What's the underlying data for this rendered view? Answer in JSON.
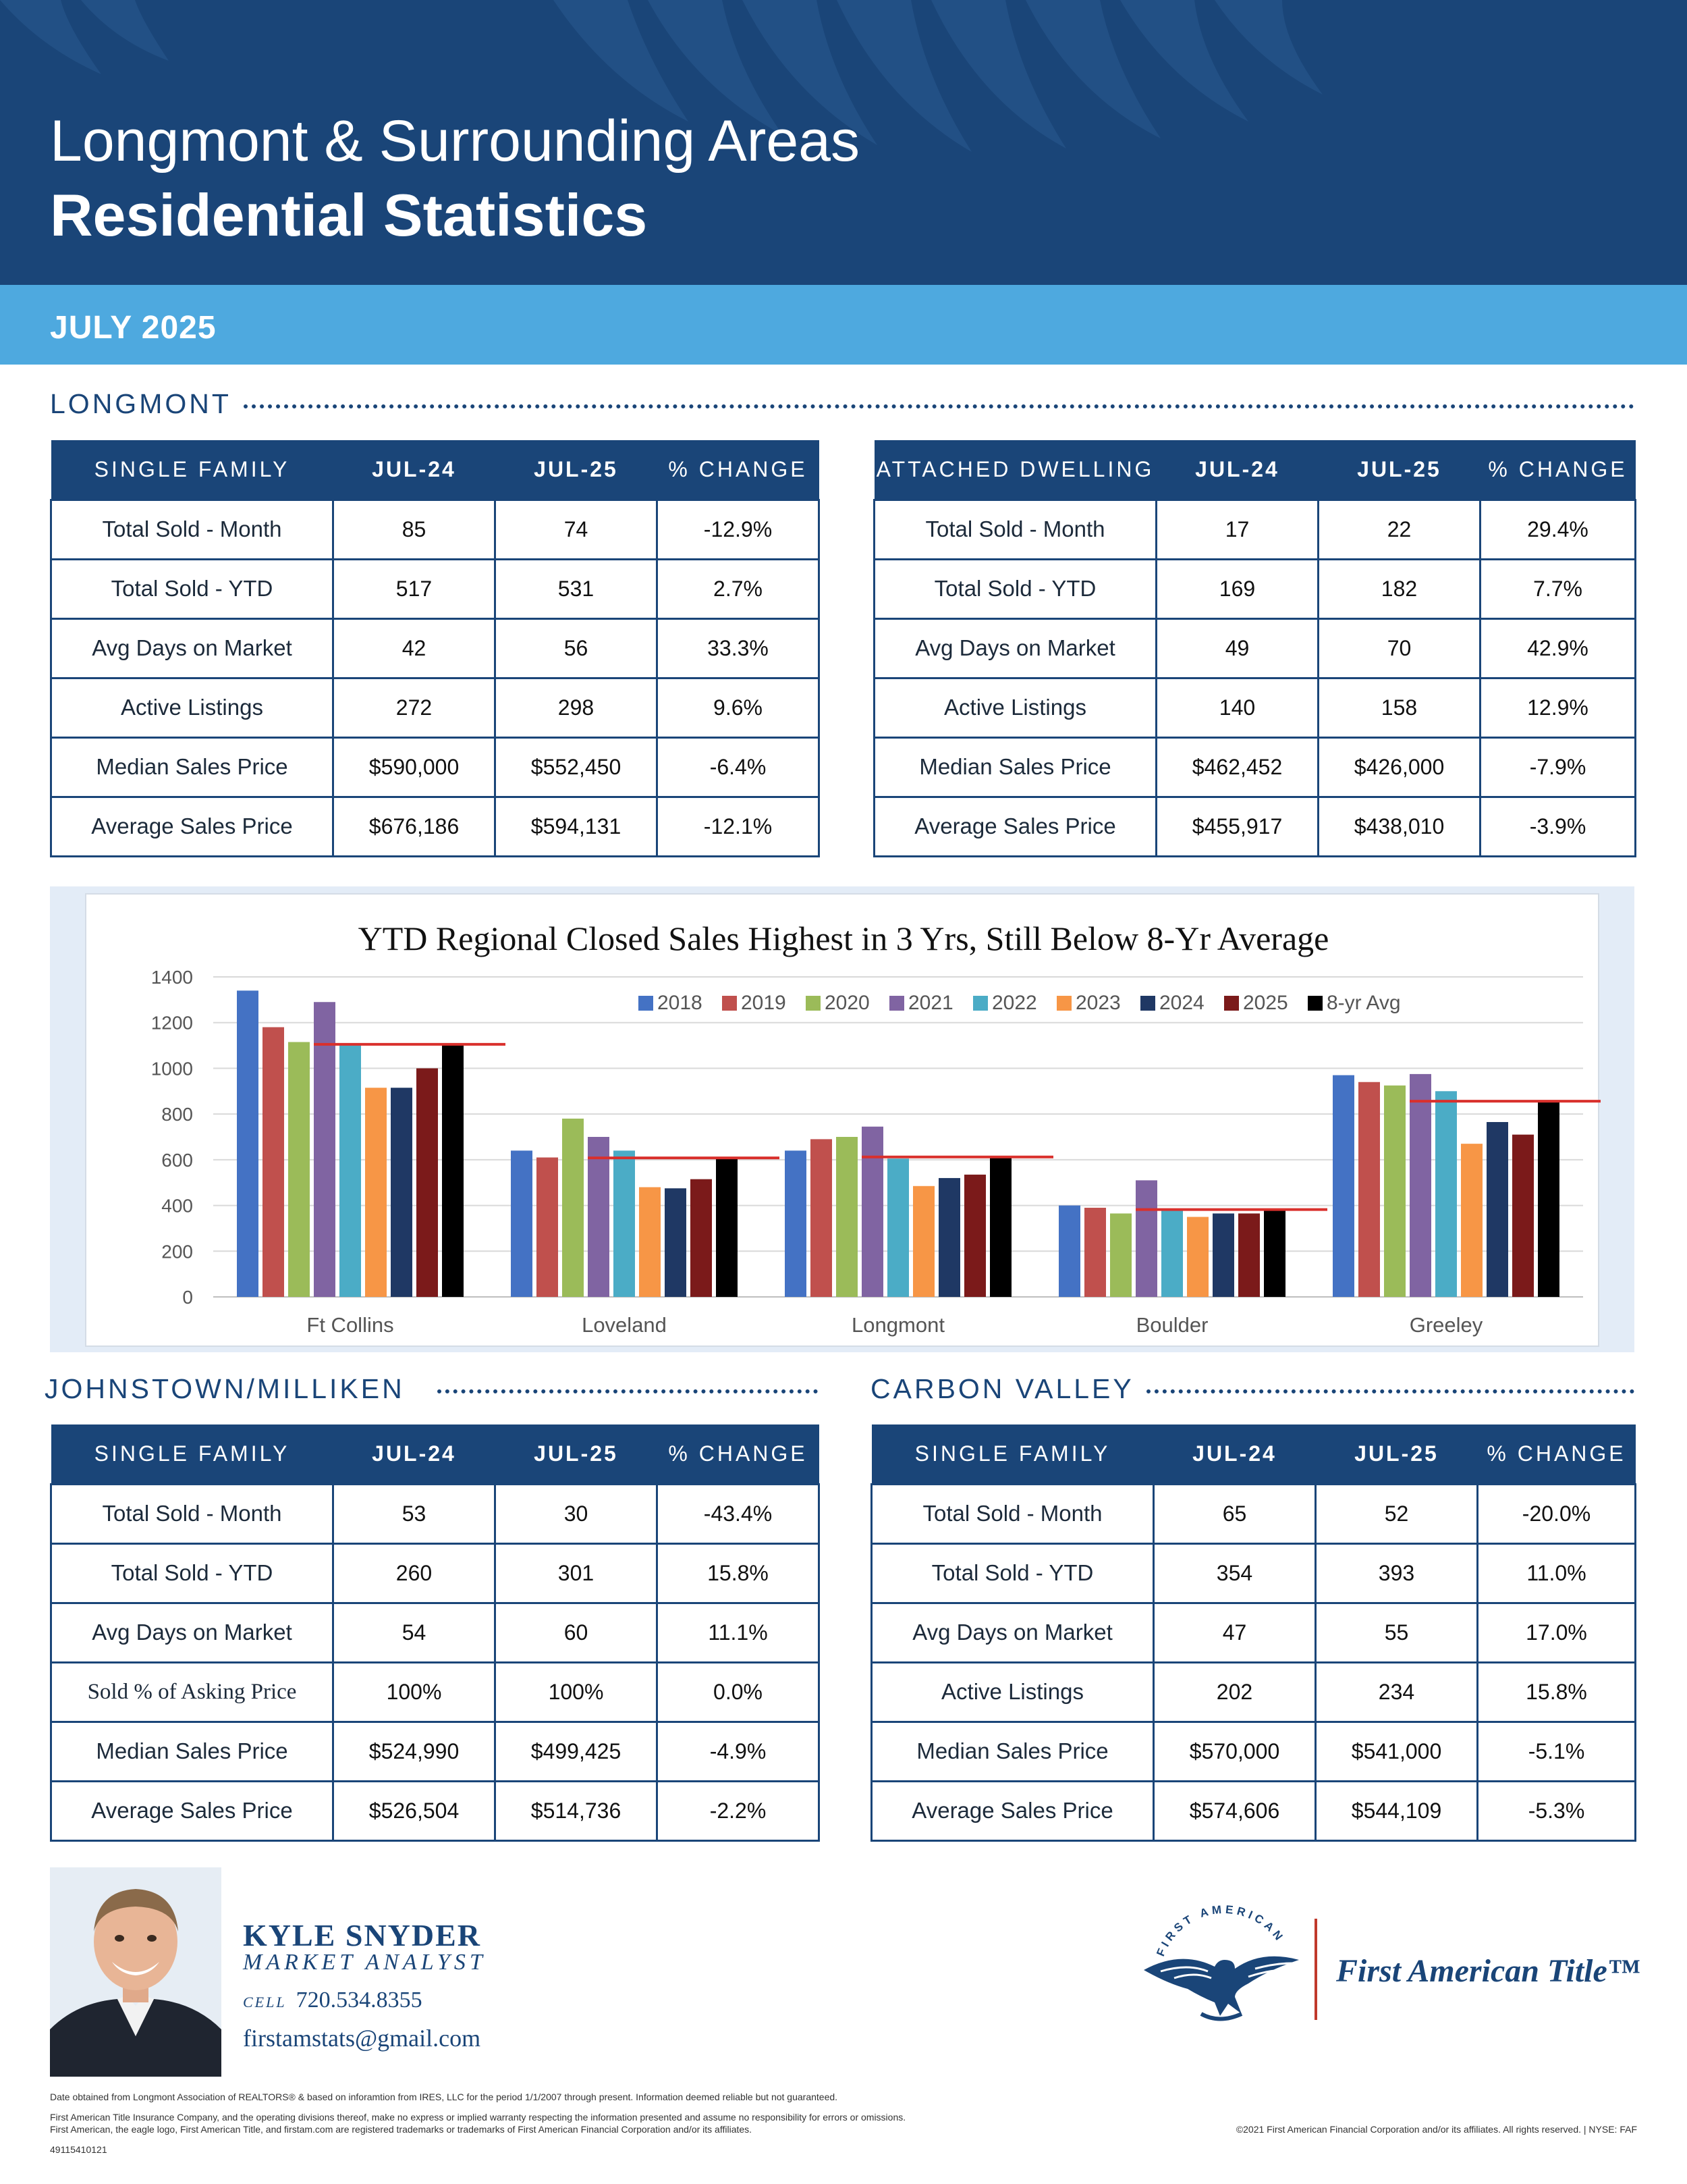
{
  "header": {
    "title_line1": "Longmont & Surrounding Areas",
    "title_line2": "Residential Statistics",
    "date": "JULY 2025"
  },
  "sections": {
    "longmont": "LONGMONT",
    "johnstown": "JOHNSTOWN/MILLIKEN",
    "carbon": "CARBON VALLEY"
  },
  "tables": {
    "longmont_sf": {
      "headers": [
        "SINGLE FAMILY",
        "JUL-24",
        "JUL-25",
        "% CHANGE"
      ],
      "rows": [
        [
          "Total Sold - Month",
          "85",
          "74",
          "-12.9%"
        ],
        [
          "Total Sold - YTD",
          "517",
          "531",
          "2.7%"
        ],
        [
          "Avg Days on Market",
          "42",
          "56",
          "33.3%"
        ],
        [
          "Active Listings",
          "272",
          "298",
          "9.6%"
        ],
        [
          "Median Sales Price",
          "$590,000",
          "$552,450",
          "-6.4%"
        ],
        [
          "Average Sales Price",
          "$676,186",
          "$594,131",
          "-12.1%"
        ]
      ]
    },
    "longmont_ad": {
      "headers": [
        "ATTACHED DWELLING",
        "JUL-24",
        "JUL-25",
        "% CHANGE"
      ],
      "rows": [
        [
          "Total Sold - Month",
          "17",
          "22",
          "29.4%"
        ],
        [
          "Total Sold - YTD",
          "169",
          "182",
          "7.7%"
        ],
        [
          "Avg Days on Market",
          "49",
          "70",
          "42.9%"
        ],
        [
          "Active Listings",
          "140",
          "158",
          "12.9%"
        ],
        [
          "Median Sales Price",
          "$462,452",
          "$426,000",
          "-7.9%"
        ],
        [
          "Average Sales Price",
          "$455,917",
          "$438,010",
          "-3.9%"
        ]
      ]
    },
    "johnstown_sf": {
      "headers": [
        "SINGLE FAMILY",
        "JUL-24",
        "JUL-25",
        "% CHANGE"
      ],
      "rows": [
        [
          "Total Sold - Month",
          "53",
          "30",
          "-43.4%"
        ],
        [
          "Total Sold - YTD",
          "260",
          "301",
          "15.8%"
        ],
        [
          "Avg Days on Market",
          "54",
          "60",
          "11.1%"
        ],
        [
          "Sold % of Asking Price",
          "100%",
          "100%",
          "0.0%"
        ],
        [
          "Median Sales Price",
          "$524,990",
          "$499,425",
          "-4.9%"
        ],
        [
          "Average Sales Price",
          "$526,504",
          "$514,736",
          "-2.2%"
        ]
      ]
    },
    "carbon_sf": {
      "headers": [
        "SINGLE FAMILY",
        "JUL-24",
        "JUL-25",
        "% CHANGE"
      ],
      "rows": [
        [
          "Total Sold - Month",
          "65",
          "52",
          "-20.0%"
        ],
        [
          "Total Sold - YTD",
          "354",
          "393",
          "11.0%"
        ],
        [
          "Avg Days on Market",
          "47",
          "55",
          "17.0%"
        ],
        [
          "Active Listings",
          "202",
          "234",
          "15.8%"
        ],
        [
          "Median Sales Price",
          "$570,000",
          "$541,000",
          "-5.1%"
        ],
        [
          "Average Sales Price",
          "$574,606",
          "$544,109",
          "-5.3%"
        ]
      ]
    }
  },
  "chart_data": {
    "type": "bar",
    "title": "YTD Regional Closed Sales Highest in 3 Yrs, Still Below 8-Yr Average",
    "categories": [
      "Ft Collins",
      "Loveland",
      "Longmont",
      "Boulder",
      "Greeley"
    ],
    "ylim": [
      0,
      1400
    ],
    "yticks": [
      0,
      200,
      400,
      600,
      800,
      1000,
      1200,
      1400
    ],
    "legend_position": "top-right",
    "series": [
      {
        "name": "2018",
        "color": "#4472c4",
        "values": [
          1340,
          640,
          640,
          400,
          970
        ]
      },
      {
        "name": "2019",
        "color": "#c0504d",
        "values": [
          1180,
          610,
          690,
          390,
          940
        ]
      },
      {
        "name": "2020",
        "color": "#9bbb59",
        "values": [
          1115,
          780,
          700,
          365,
          925
        ]
      },
      {
        "name": "2021",
        "color": "#8064a2",
        "values": [
          1290,
          700,
          745,
          510,
          975
        ]
      },
      {
        "name": "2022",
        "color": "#4bacc6",
        "values": [
          1100,
          640,
          605,
          385,
          900
        ]
      },
      {
        "name": "2023",
        "color": "#f79646",
        "values": [
          915,
          480,
          485,
          350,
          670
        ]
      },
      {
        "name": "2024",
        "color": "#1f3864",
        "values": [
          915,
          475,
          520,
          365,
          765
        ]
      },
      {
        "name": "2025",
        "color": "#7b1a1a",
        "values": [
          1000,
          515,
          535,
          365,
          710
        ]
      },
      {
        "name": "8-yr Avg",
        "color": "#000000",
        "values": [
          1105,
          608,
          612,
          382,
          856
        ]
      }
    ],
    "avg_line_color": "#d9302c"
  },
  "agent": {
    "name": "KYLE SNYDER",
    "title": "MARKET ANALYST",
    "phone_label": "CELL",
    "phone": "720.534.8355",
    "email": "firstamstats@gmail.com"
  },
  "brand": {
    "name": "First American Title™",
    "seal_text": "FIRST AMERICAN"
  },
  "footer": {
    "line1": "Date obtained from Longmont Association of REALTORS® & based on inforamtion from IRES, LLC for the period 1/1/2007 through present. Information deemed reliable but not guaranteed.",
    "line2": "First American Title Insurance Company, and the operating divisions thereof, make no express or implied warranty respecting the information presented and assume no responsibility for errors or omissions.",
    "line3": "First American, the eagle logo, First American Title, and firstam.com are registered trademarks or trademarks of First American Financial Corporation and/or its affiliates.",
    "copyright": "©2021 First American Financial Corporation and/or its affiliates. All rights reserved. | NYSE: FAF",
    "code": "49115410121"
  },
  "colors": {
    "navy": "#1a4578",
    "sky": "#4ea9df"
  }
}
